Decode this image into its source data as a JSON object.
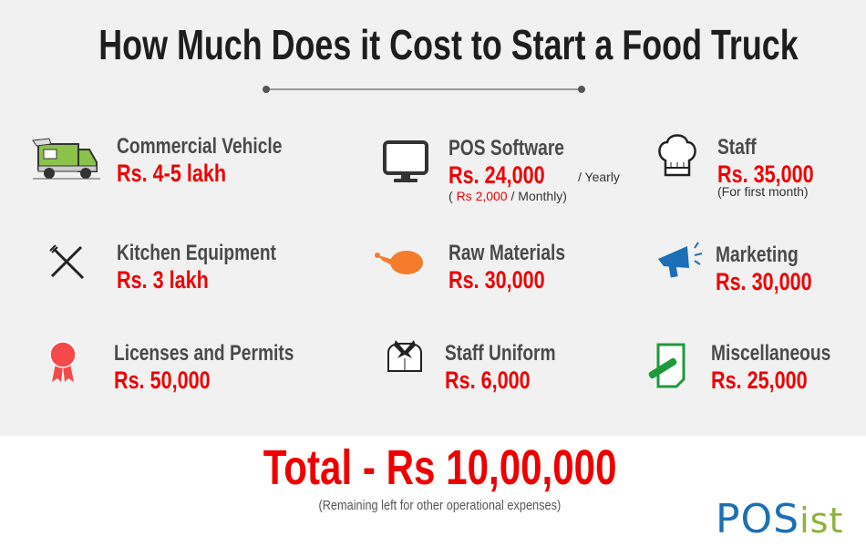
{
  "title": "How Much Does it Cost to Start a Food Truck",
  "items": [
    {
      "name": "Commercial Vehicle",
      "price": "Rs. 4-5 lakh",
      "icon": "food-truck-icon"
    },
    {
      "name": "POS Software",
      "price": "Rs. 24,000",
      "price_suffix": "/ Yearly",
      "extra_open": "( ",
      "extra_price": "Rs 2,000",
      "extra_close": " / Monthly)",
      "icon": "monitor-icon"
    },
    {
      "name": "Staff",
      "price": "Rs. 35,000",
      "extra": "(For first month)",
      "icon": "chef-hat-icon"
    },
    {
      "name": "Kitchen Equipment",
      "price": "Rs. 3 lakh",
      "icon": "fork-knife-icon"
    },
    {
      "name": "Raw Materials",
      "price": "Rs. 30,000",
      "icon": "chicken-icon"
    },
    {
      "name": "Marketing",
      "price": "Rs. 30,000",
      "icon": "megaphone-icon"
    },
    {
      "name": "Licenses and Permits",
      "price": "Rs. 50,000",
      "icon": "award-ribbon-icon"
    },
    {
      "name": "Staff Uniform",
      "price": "Rs. 6,000",
      "icon": "uniform-icon"
    },
    {
      "name": "Miscellaneous",
      "price": "Rs. 25,000",
      "icon": "note-pencil-icon"
    }
  ],
  "total": "Total - Rs 10,00,000",
  "total_note": "(Remaining left for other operational expenses)",
  "logo": {
    "part1": "POS",
    "part2": "ist"
  },
  "colors": {
    "accent_red": "#ee0000",
    "heading": "#4a4a4a",
    "logo_blue": "#1a6fb5",
    "logo_green": "#8db33a"
  }
}
